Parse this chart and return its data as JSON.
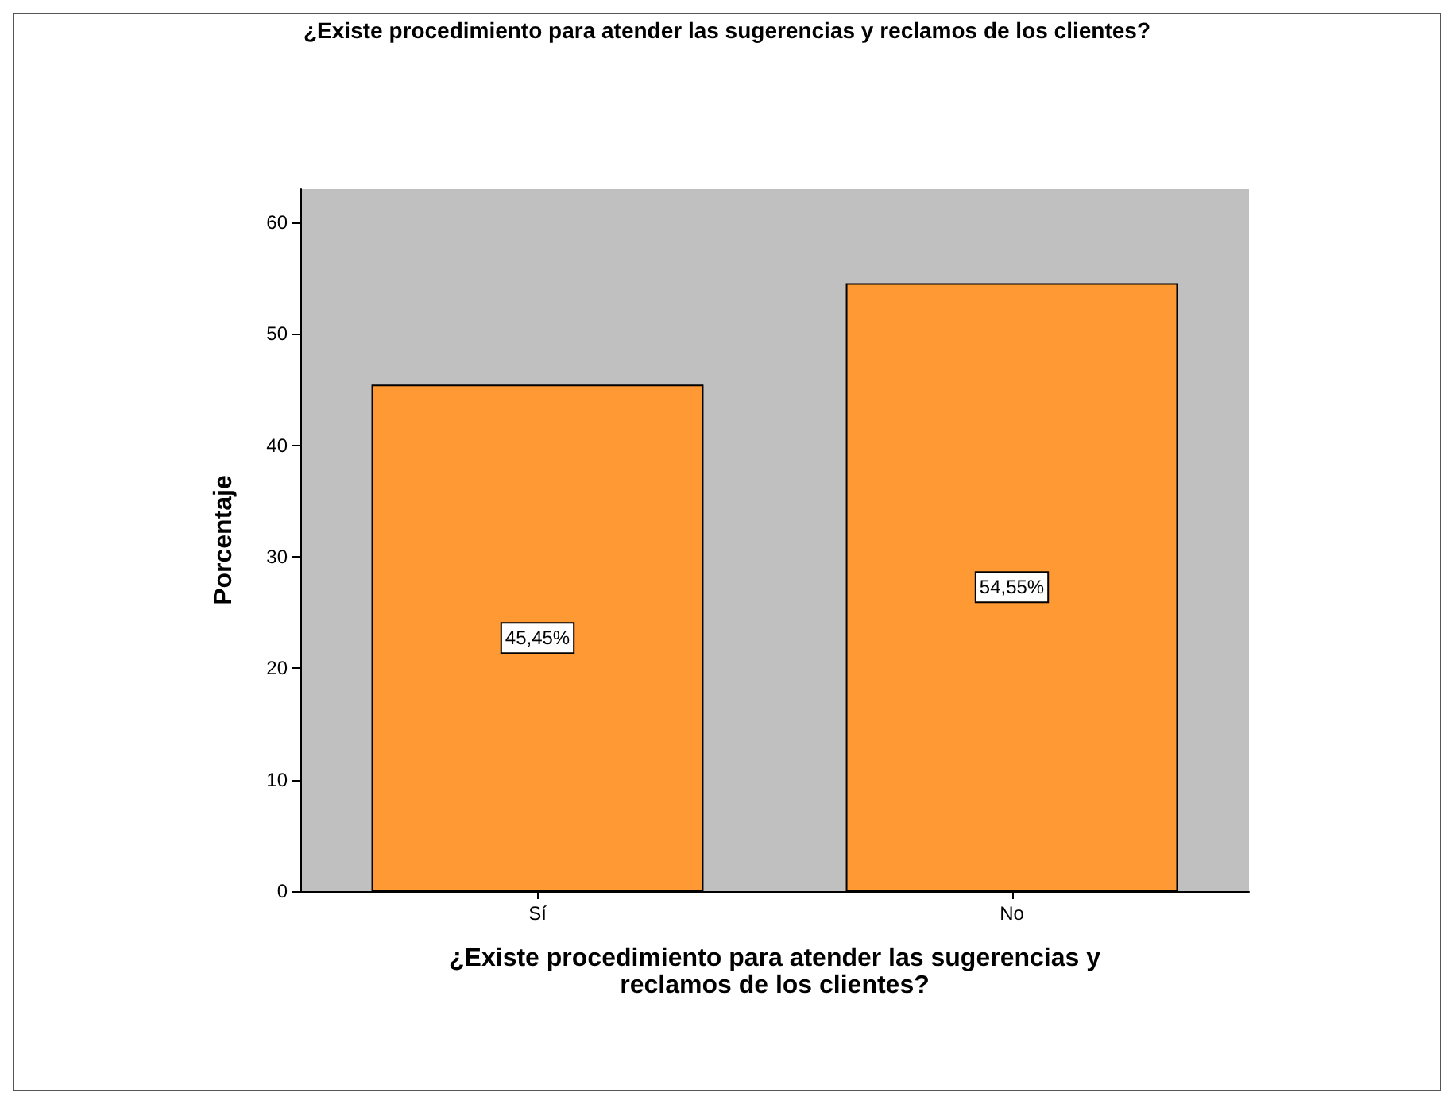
{
  "chart_data": {
    "type": "bar",
    "title": "¿Existe procedimiento para atender las sugerencias y reclamos de los clientes?",
    "xlabel": "¿Existe procedimiento para atender las sugerencias y\nreclamos de los clientes?",
    "ylabel": "Porcentaje",
    "categories": [
      "Sí",
      "No"
    ],
    "values": [
      45.45,
      54.55
    ],
    "value_labels": [
      "45,45%",
      "54,55%"
    ],
    "color": "#ff9933",
    "ylim": [
      0,
      63
    ],
    "yticks": [
      0,
      10,
      20,
      30,
      40,
      50,
      60
    ],
    "grid": false
  }
}
